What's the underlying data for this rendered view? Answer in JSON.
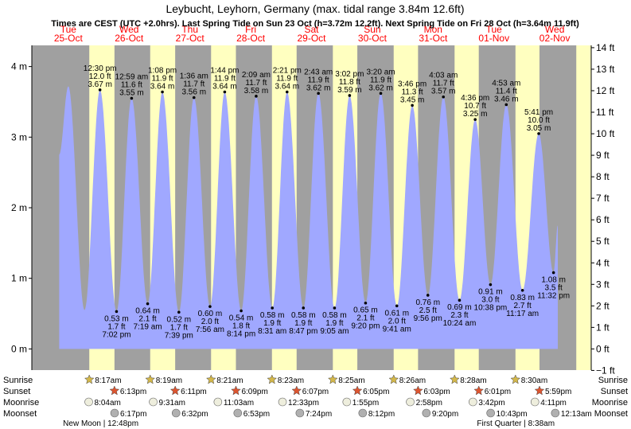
{
  "chart_data": {
    "type": "area",
    "title": "Leybucht, Leyhorn, Germany (max. tidal range 3.84m 12.6ft)",
    "subtitle": "Times are CEST (UTC +2.0hrs). Last Spring Tide on Sun 23 Oct (h=3.72m 12.2ft). Next Spring Tide on Fri 28 Oct (h=3.64m 11.9ft)",
    "ylabel_left": "m",
    "ylabel_right": "ft",
    "ylim_m": [
      -0.3,
      4.3
    ],
    "y_ticks_m": [
      {
        "value": 0,
        "label": "0 m"
      },
      {
        "value": 1,
        "label": "1 m"
      },
      {
        "value": 2,
        "label": "2 m"
      },
      {
        "value": 3,
        "label": "3 m"
      },
      {
        "value": 4,
        "label": "4 m"
      }
    ],
    "y_ticks_ft": [
      {
        "value": -1,
        "label": "−1 ft"
      },
      {
        "value": 0,
        "label": "0 ft"
      },
      {
        "value": 1,
        "label": "1 ft"
      },
      {
        "value": 2,
        "label": "2 ft"
      },
      {
        "value": 3,
        "label": "3 ft"
      },
      {
        "value": 4,
        "label": "4 ft"
      },
      {
        "value": 5,
        "label": "5 ft"
      },
      {
        "value": 6,
        "label": "6 ft"
      },
      {
        "value": 7,
        "label": "7 ft"
      },
      {
        "value": 8,
        "label": "8 ft"
      },
      {
        "value": 9,
        "label": "9 ft"
      },
      {
        "value": 10,
        "label": "10 ft"
      },
      {
        "value": 11,
        "label": "11 ft"
      },
      {
        "value": 12,
        "label": "12 ft"
      },
      {
        "value": 13,
        "label": "13 ft"
      },
      {
        "value": 14,
        "label": "14 ft"
      }
    ],
    "x_range_days": [
      -0.6,
      8.6
    ],
    "days": [
      {
        "dow": "Tue",
        "date": "25-Oct"
      },
      {
        "dow": "Wed",
        "date": "26-Oct"
      },
      {
        "dow": "Thu",
        "date": "27-Oct"
      },
      {
        "dow": "Fri",
        "date": "28-Oct"
      },
      {
        "dow": "Sat",
        "date": "29-Oct"
      },
      {
        "dow": "Sun",
        "date": "30-Oct"
      },
      {
        "dow": "Mon",
        "date": "31-Oct"
      },
      {
        "dow": "Tue",
        "date": "01-Nov"
      },
      {
        "dow": "Wed",
        "date": "02-Nov"
      }
    ],
    "sunlight": [
      {
        "sunrise_h": 8.28,
        "sunset_h": 18.22
      },
      {
        "sunrise_h": 8.32,
        "sunset_h": 18.18
      },
      {
        "sunrise_h": 8.35,
        "sunset_h": 18.15
      },
      {
        "sunrise_h": 8.38,
        "sunset_h": 18.12
      },
      {
        "sunrise_h": 8.42,
        "sunset_h": 18.08
      },
      {
        "sunrise_h": 8.43,
        "sunset_h": 18.05
      },
      {
        "sunrise_h": 8.47,
        "sunset_h": 18.02
      },
      {
        "sunrise_h": 8.5,
        "sunset_h": 17.98
      }
    ],
    "data_start_day": -0.15,
    "data_end_day": 8.05,
    "start_level_m": 2.75,
    "end_level_m": 1.75,
    "tides": [
      {
        "type": "high",
        "day": 0,
        "hour": 0.0,
        "m": 3.72,
        "labels": []
      },
      {
        "type": "low",
        "day": 0,
        "hour": 6.4,
        "m": 0.55,
        "labels": []
      },
      {
        "type": "high",
        "day": 0,
        "hour": 12.5,
        "m": 3.67,
        "labels": [
          "12:30 pm",
          "12.0 ft",
          "3.67 m"
        ]
      },
      {
        "type": "low",
        "day": 0,
        "hour": 19.0333,
        "m": 0.53,
        "labels": [
          "0.53 m",
          "1.7 ft",
          "7:02 pm"
        ]
      },
      {
        "type": "high",
        "day": 1,
        "hour": 0.9833,
        "m": 3.55,
        "labels": [
          "12:59 am",
          "11.6 ft",
          "3.55 m"
        ]
      },
      {
        "type": "low",
        "day": 1,
        "hour": 7.3167,
        "m": 0.64,
        "labels": [
          "0.64 m",
          "2.1 ft",
          "7:19 am"
        ]
      },
      {
        "type": "high",
        "day": 1,
        "hour": 13.1333,
        "m": 3.64,
        "labels": [
          "1:08 pm",
          "11.9 ft",
          "3.64 m"
        ]
      },
      {
        "type": "low",
        "day": 1,
        "hour": 19.65,
        "m": 0.52,
        "labels": [
          "0.52 m",
          "1.7 ft",
          "7:39 pm"
        ]
      },
      {
        "type": "high",
        "day": 2,
        "hour": 1.6,
        "m": 3.56,
        "labels": [
          "1:36 am",
          "11.7 ft",
          "3.56 m"
        ]
      },
      {
        "type": "low",
        "day": 2,
        "hour": 7.9333,
        "m": 0.6,
        "labels": [
          "0.60 m",
          "2.0 ft",
          "7:56 am"
        ]
      },
      {
        "type": "high",
        "day": 2,
        "hour": 13.7333,
        "m": 3.64,
        "labels": [
          "1:44 pm",
          "11.9 ft",
          "3.64 m"
        ]
      },
      {
        "type": "low",
        "day": 2,
        "hour": 20.2333,
        "m": 0.54,
        "labels": [
          "0.54 m",
          "1.8 ft",
          "8:14 pm"
        ]
      },
      {
        "type": "high",
        "day": 3,
        "hour": 2.15,
        "m": 3.58,
        "labels": [
          "2:09 am",
          "11.7 ft",
          "3.58 m"
        ]
      },
      {
        "type": "low",
        "day": 3,
        "hour": 8.5167,
        "m": 0.58,
        "labels": [
          "0.58 m",
          "1.9 ft",
          "8:31 am"
        ]
      },
      {
        "type": "high",
        "day": 3,
        "hour": 14.35,
        "m": 3.64,
        "labels": [
          "2:21 pm",
          "11.9 ft",
          "3.64 m"
        ]
      },
      {
        "type": "low",
        "day": 3,
        "hour": 20.7833,
        "m": 0.58,
        "labels": [
          "0.58 m",
          "1.9 ft",
          "8:47 pm"
        ]
      },
      {
        "type": "high",
        "day": 4,
        "hour": 2.7167,
        "m": 3.62,
        "labels": [
          "2:43 am",
          "11.9 ft",
          "3.62 m"
        ]
      },
      {
        "type": "low",
        "day": 4,
        "hour": 9.0833,
        "m": 0.58,
        "labels": [
          "0.58 m",
          "1.9 ft",
          "9:05 am"
        ]
      },
      {
        "type": "high",
        "day": 4,
        "hour": 15.0333,
        "m": 3.59,
        "labels": [
          "3:02 pm",
          "11.8 ft",
          "3.59 m"
        ]
      },
      {
        "type": "low",
        "day": 4,
        "hour": 21.3333,
        "m": 0.65,
        "labels": [
          "0.65 m",
          "2.1 ft",
          "9:20 pm"
        ]
      },
      {
        "type": "high",
        "day": 5,
        "hour": 3.3333,
        "m": 3.62,
        "labels": [
          "3:20 am",
          "11.9 ft",
          "3.62 m"
        ]
      },
      {
        "type": "low",
        "day": 5,
        "hour": 9.6833,
        "m": 0.61,
        "labels": [
          "0.61 m",
          "2.0 ft",
          "9:41 am"
        ]
      },
      {
        "type": "high",
        "day": 5,
        "hour": 15.7667,
        "m": 3.45,
        "labels": [
          "3:46 pm",
          "11.3 ft",
          "3.45 m"
        ]
      },
      {
        "type": "low",
        "day": 5,
        "hour": 21.9333,
        "m": 0.76,
        "labels": [
          "0.76 m",
          "2.5 ft",
          "9:56 pm"
        ]
      },
      {
        "type": "high",
        "day": 6,
        "hour": 4.05,
        "m": 3.57,
        "labels": [
          "4:03 am",
          "11.7 ft",
          "3.57 m"
        ]
      },
      {
        "type": "low",
        "day": 6,
        "hour": 10.4,
        "m": 0.69,
        "labels": [
          "0.69 m",
          "2.3 ft",
          "10:24 am"
        ]
      },
      {
        "type": "high",
        "day": 6,
        "hour": 16.6,
        "m": 3.25,
        "labels": [
          "4:36 pm",
          "10.7 ft",
          "3.25 m"
        ]
      },
      {
        "type": "low",
        "day": 6,
        "hour": 22.6333,
        "m": 0.91,
        "labels": [
          "0.91 m",
          "3.0 ft",
          "10:38 pm"
        ]
      },
      {
        "type": "high",
        "day": 7,
        "hour": 4.8833,
        "m": 3.46,
        "labels": [
          "4:53 am",
          "11.4 ft",
          "3.46 m"
        ]
      },
      {
        "type": "low",
        "day": 7,
        "hour": 11.2833,
        "m": 0.83,
        "labels": [
          "0.83 m",
          "2.7 ft",
          "11:17 am"
        ]
      },
      {
        "type": "high",
        "day": 7,
        "hour": 17.6833,
        "m": 3.05,
        "labels": [
          "5:41 pm",
          "10.0 ft",
          "3.05 m"
        ]
      },
      {
        "type": "low",
        "day": 7,
        "hour": 23.5333,
        "m": 1.08,
        "labels": [
          "1.08 m",
          "3.5 ft",
          "11:32 pm"
        ]
      }
    ],
    "bottom_rows": {
      "labels": [
        "Sunrise",
        "Sunset",
        "Moonrise",
        "Moonset"
      ],
      "sunrise": [
        {
          "day": 0,
          "hour": 8.2833,
          "text": "8:17am"
        },
        {
          "day": 1,
          "hour": 8.3167,
          "text": "8:19am"
        },
        {
          "day": 2,
          "hour": 8.35,
          "text": "8:21am"
        },
        {
          "day": 3,
          "hour": 8.3833,
          "text": "8:23am"
        },
        {
          "day": 4,
          "hour": 8.4167,
          "text": "8:25am"
        },
        {
          "day": 5,
          "hour": 8.4333,
          "text": "8:26am"
        },
        {
          "day": 6,
          "hour": 8.4667,
          "text": "8:28am"
        },
        {
          "day": 7,
          "hour": 8.5,
          "text": "8:30am"
        }
      ],
      "sunset": [
        {
          "day": 0,
          "hour": 18.2167,
          "text": "6:13pm"
        },
        {
          "day": 1,
          "hour": 18.1833,
          "text": "6:11pm"
        },
        {
          "day": 2,
          "hour": 18.15,
          "text": "6:09pm"
        },
        {
          "day": 3,
          "hour": 18.1167,
          "text": "6:07pm"
        },
        {
          "day": 4,
          "hour": 18.0833,
          "text": "6:05pm"
        },
        {
          "day": 5,
          "hour": 18.05,
          "text": "6:03pm"
        },
        {
          "day": 6,
          "hour": 18.0167,
          "text": "6:01pm"
        },
        {
          "day": 7,
          "hour": 17.9833,
          "text": "5:59pm"
        }
      ],
      "moonrise": [
        {
          "day": 0,
          "hour": 8.0667,
          "text": "8:04am"
        },
        {
          "day": 1,
          "hour": 9.5167,
          "text": "9:31am"
        },
        {
          "day": 2,
          "hour": 11.05,
          "text": "11:03am"
        },
        {
          "day": 3,
          "hour": 12.55,
          "text": "12:33pm"
        },
        {
          "day": 4,
          "hour": 13.9167,
          "text": "1:55pm"
        },
        {
          "day": 5,
          "hour": 14.9667,
          "text": "2:58pm"
        },
        {
          "day": 6,
          "hour": 15.7,
          "text": "3:42pm"
        },
        {
          "day": 7,
          "hour": 16.1833,
          "text": "4:11pm"
        }
      ],
      "moonset": [
        {
          "day": 0,
          "hour": 18.2833,
          "text": "6:17pm"
        },
        {
          "day": 1,
          "hour": 18.5333,
          "text": "6:32pm"
        },
        {
          "day": 2,
          "hour": 18.8833,
          "text": "6:53pm"
        },
        {
          "day": 3,
          "hour": 19.4,
          "text": "7:24pm"
        },
        {
          "day": 4,
          "hour": 20.2,
          "text": "8:12pm"
        },
        {
          "day": 5,
          "hour": 21.3333,
          "text": "9:20pm"
        },
        {
          "day": 6,
          "hour": 22.7167,
          "text": "10:43pm"
        },
        {
          "day": 8,
          "hour": 0.2167,
          "text": "12:13am"
        }
      ]
    },
    "moon_phases": [
      {
        "day": 0,
        "hour": 12.8,
        "text": "New Moon | 12:48pm"
      },
      {
        "day": 7,
        "hour": 8.6333,
        "text": "First Quarter | 8:38am"
      }
    ],
    "colors": {
      "night": "#a0a0a0",
      "day": "#ffffc0",
      "tide_fill": "#a0a8ff",
      "accent_red": "#ff0000",
      "axis_text": "#000000",
      "sun_star": "#d4b84a",
      "sunset_star": "#dd5530",
      "moon_fill": "#eeeedd",
      "moon_grey": "#b0b0b0"
    }
  }
}
